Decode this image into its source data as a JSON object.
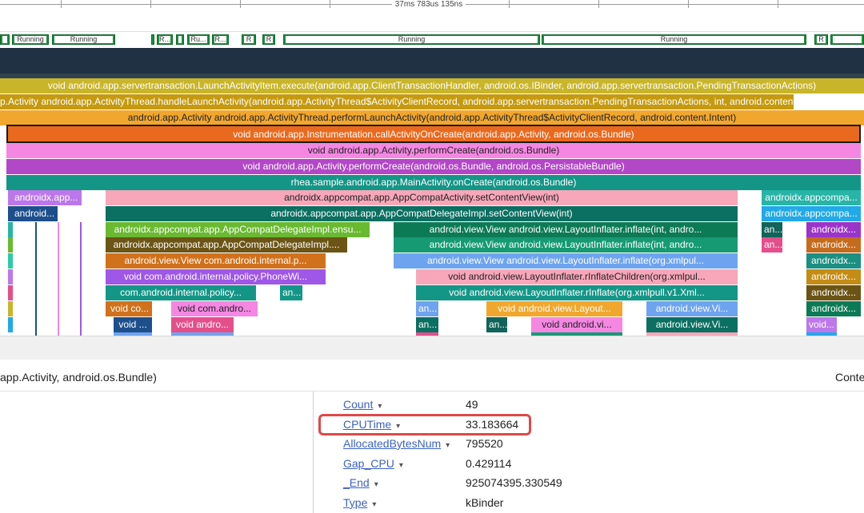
{
  "timeline": {
    "label": "37ms 783us 135ns"
  },
  "thread_states": [
    {
      "label": ""
    },
    {
      "label": "Running"
    },
    {
      "label": "Running"
    },
    {
      "label": ""
    },
    {
      "label": "R..."
    },
    {
      "label": ""
    },
    {
      "label": "Ru..."
    },
    {
      "label": "R..."
    },
    {
      "label": "R"
    },
    {
      "label": "R"
    },
    {
      "label": "Running"
    },
    {
      "label": "Running"
    },
    {
      "label": "R"
    },
    {
      "label": ""
    }
  ],
  "flame": {
    "row1": "void android.app.servertransaction.LaunchActivityItem.execute(android.app.ClientTransactionHandler, android.os.IBinder, android.app.servertransaction.PendingTransactionActions)",
    "row2": "p.Activity android.app.ActivityThread.handleLaunchActivity(android.app.ActivityThread$ActivityClientRecord, android.app.servertransaction.PendingTransactionActions, int, android.content...",
    "row3": "android.app.Activity android.app.ActivityThread.performLaunchActivity(android.app.ActivityThread$ActivityClientRecord, android.content.Intent)",
    "row4": "void android.app.Instrumentation.callActivityOnCreate(android.app.Activity, android.os.Bundle)",
    "row5": "void android.app.Activity.performCreate(android.os.Bundle)",
    "row6": "void android.app.Activity.performCreate(android.os.Bundle, android.os.PersistableBundle)",
    "row7": "rhea.sample.android.app.MainActivity.onCreate(android.os.Bundle)",
    "r8a": "androidx.app...",
    "r8b": "androidx.appcompat.app.AppCompatActivity.setContentView(int)",
    "r8c": "androidx.appcompa...",
    "r9a": "android...",
    "r9b": "androidx.appcompat.app.AppCompatDelegateImpl.setContentView(int)",
    "r9c": "androidx.appcompa...",
    "r10a": "androidx.appcompat.app.AppCompatDelegateImpl.ensu...",
    "r10b": "android.view.View android.view.LayoutInflater.inflate(int, andro...",
    "r10c": "an...",
    "r10d": "androidx...",
    "r11a": "androidx.appcompat.app.AppCompatDelegateImpl....",
    "r11b": "android.view.View android.view.LayoutInflater.inflate(int, andro...",
    "r11c": "an...",
    "r11d": "androidx...",
    "r12a": "android.view.View com.android.internal.p...",
    "r12b": "android.view.View android.view.LayoutInflater.inflate(org.xmlpul...",
    "r12c": "androidx...",
    "r13a": "void com.android.internal.policy.PhoneWi...",
    "r13b": "void android.view.LayoutInflater.rInflateChildren(org.xmlpul...",
    "r13c": "androidx...",
    "r14a": "com.android.internal.policy...",
    "r14b": "an...",
    "r14c": "void android.view.LayoutInflater.rInflate(org.xmlpull.v1.Xml...",
    "r14d": "androidx...",
    "r15a": "void co...",
    "r15b": "void com.andro...",
    "r15c": "an...",
    "r15d": "void android.view.Layout...",
    "r15e": "android.view.Vi...",
    "r15f": "androidx...",
    "r16a": "void ...",
    "r16b": "void andro...",
    "r16c": "an...",
    "r16d": "an...",
    "r16e": "void android.vi...",
    "r16f": "android.view.Vi...",
    "r16g": "void..."
  },
  "status": {
    "selected": "app.Activity, android.os.Bundle)",
    "right": "Conte"
  },
  "properties": [
    {
      "key": "Count",
      "value": "49"
    },
    {
      "key": "CPUTime",
      "value": "33.183664"
    },
    {
      "key": "AllocatedBytesNum",
      "value": "795520"
    },
    {
      "key": "Gap_CPU",
      "value": "0.429114"
    },
    {
      "key": "_End",
      "value": "925074395.330549"
    },
    {
      "key": "Type",
      "value": "kBinder"
    }
  ],
  "colors": {
    "highlight": "#e04848",
    "running": "#1e8e3e",
    "link": "#3c62c4"
  }
}
